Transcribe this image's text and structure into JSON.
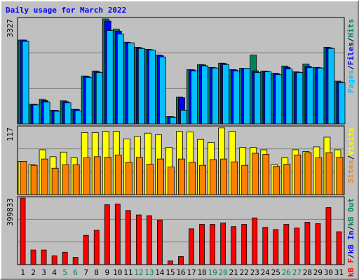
{
  "chart_data": [
    {
      "type": "bar",
      "title": "Daily usage for March 2022",
      "ylim": [
        0,
        3327
      ],
      "yticks": [
        3327
      ],
      "grid_divisions": 3,
      "legend_separator": "/",
      "series": [
        {
          "name": "Pages",
          "color": "#00c0ff",
          "values": [
            2615,
            600,
            690,
            400,
            670,
            420,
            1470,
            1630,
            2960,
            2845,
            2570,
            2390,
            2340,
            2120,
            210,
            435,
            1680,
            1840,
            1770,
            1880,
            1680,
            1765,
            1630,
            1650,
            1560,
            1740,
            1630,
            1780,
            1770,
            2390,
            1310
          ]
        },
        {
          "name": "Files",
          "color": "#0000ff",
          "values": [
            2660,
            620,
            740,
            435,
            700,
            460,
            1500,
            1650,
            3260,
            2940,
            2570,
            2410,
            2350,
            2160,
            230,
            830,
            1710,
            1870,
            1780,
            1910,
            1710,
            1765,
            1680,
            1660,
            1590,
            1790,
            1640,
            1830,
            1780,
            2410,
            1330
          ]
        },
        {
          "name": "Hits",
          "color": "#00805c",
          "values": [
            2660,
            620,
            780,
            435,
            735,
            460,
            1515,
            1675,
            3327,
            3005,
            2590,
            2430,
            2365,
            2180,
            230,
            850,
            1720,
            1880,
            1790,
            1925,
            1720,
            1765,
            2180,
            1675,
            1605,
            1835,
            1650,
            1900,
            1790,
            2430,
            1355
          ]
        }
      ]
    },
    {
      "type": "bar",
      "ylim": [
        0,
        117
      ],
      "yticks": [
        117
      ],
      "grid_divisions": 3,
      "legend_separator": "/",
      "series": [
        {
          "name": "Sites",
          "color": "#ff8000",
          "values": [
            58,
            51,
            62,
            46,
            52,
            52,
            64,
            66,
            65,
            69,
            56,
            65,
            53,
            62,
            48,
            62,
            56,
            51,
            61,
            62,
            57,
            51,
            72,
            70,
            49,
            53,
            69,
            73,
            64,
            73,
            65
          ]
        },
        {
          "name": "Visits",
          "color": "#ffff00",
          "values": [
            58,
            52,
            78,
            66,
            74,
            64,
            108,
            108,
            110,
            110,
            97,
            101,
            107,
            104,
            82,
            110,
            109,
            96,
            91,
            116,
            110,
            82,
            82,
            78,
            52,
            64,
            78,
            75,
            83,
            100,
            78
          ]
        }
      ]
    },
    {
      "type": "bar",
      "ylim": [
        0,
        399833
      ],
      "yticks": [
        399833
      ],
      "grid_divisions": 3,
      "legend_separator": "/",
      "categories": [
        "1",
        "2",
        "3",
        "4",
        "5",
        "6",
        "7",
        "8",
        "9",
        "10",
        "11",
        "12",
        "13",
        "14",
        "15",
        "16",
        "17",
        "18",
        "19",
        "20",
        "21",
        "22",
        "23",
        "24",
        "25",
        "26",
        "27",
        "28",
        "29",
        "30",
        "31"
      ],
      "highlighted": [
        "5",
        "6",
        "12",
        "13",
        "19",
        "20",
        "26",
        "27"
      ],
      "highlight_color": "#00805c",
      "series": [
        {
          "name": "kB F",
          "color": "#ff0000",
          "values": [
            399833,
            87900,
            87900,
            52700,
            74700,
            43900,
            175800,
            206500,
            360300,
            364700,
            325100,
            298700,
            294300,
            268000,
            22000,
            48300,
            215300,
            241700,
            241700,
            250500,
            228500,
            241700,
            281100,
            224000,
            210900,
            241700,
            219700,
            254900,
            246100,
            342700,
            197700
          ]
        },
        {
          "name": "kB In",
          "color": "#0000ff"
        },
        {
          "name": "kB Out",
          "color": "#00805c"
        }
      ]
    }
  ]
}
